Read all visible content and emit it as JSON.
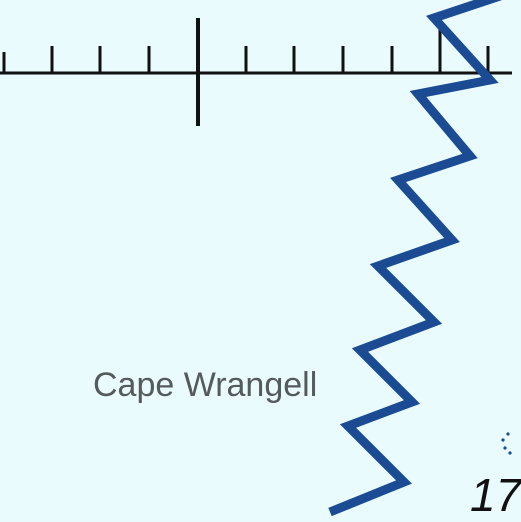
{
  "map": {
    "background_color": "#e9fbfd",
    "line_color": "#1b4b93",
    "scale_color": "#111111",
    "label_color": "#555a5c"
  },
  "labels": {
    "place_name": "Cape Wrangell",
    "edge_number": "17"
  }
}
